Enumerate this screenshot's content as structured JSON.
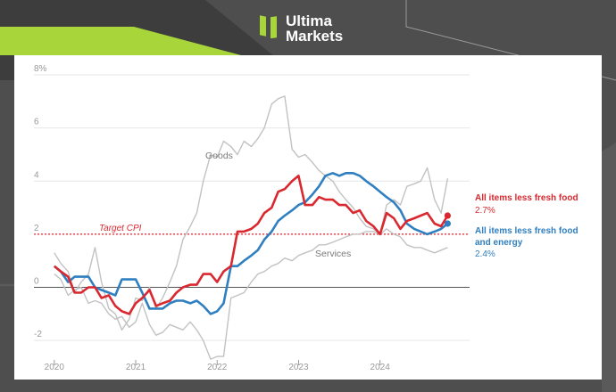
{
  "brand": {
    "line1": "Ultima",
    "line2": "Markets",
    "accent_color": "#a8d63a"
  },
  "chart_data": {
    "type": "line",
    "ylim": [
      -3,
      8
    ],
    "xlim": [
      2019.75,
      2025.1
    ],
    "y_ticks": [
      {
        "value": 8,
        "label": "8%"
      },
      {
        "value": 6,
        "label": "6"
      },
      {
        "value": 4,
        "label": "4"
      },
      {
        "value": 2,
        "label": "2"
      },
      {
        "value": 0,
        "label": "0"
      },
      {
        "value": -2,
        "label": "-2"
      }
    ],
    "x_ticks": [
      {
        "value": 2020,
        "label": "2020"
      },
      {
        "value": 2021,
        "label": "2021"
      },
      {
        "value": 2022,
        "label": "2022"
      },
      {
        "value": 2023,
        "label": "2023"
      },
      {
        "value": 2024,
        "label": "2024"
      }
    ],
    "target": {
      "value": 2,
      "label": "Target CPI"
    },
    "series": [
      {
        "name": "Goods",
        "color": "#c2c2c2",
        "width": 1.4,
        "x": [
          2020.0,
          2020.08,
          2020.17,
          2020.25,
          2020.33,
          2020.42,
          2020.5,
          2020.58,
          2020.67,
          2020.75,
          2020.83,
          2020.92,
          2021.0,
          2021.08,
          2021.17,
          2021.25,
          2021.33,
          2021.42,
          2021.5,
          2021.58,
          2021.67,
          2021.75,
          2021.83,
          2021.92,
          2022.0,
          2022.08,
          2022.17,
          2022.25,
          2022.33,
          2022.42,
          2022.5,
          2022.58,
          2022.67,
          2022.75,
          2022.83,
          2022.92,
          2023.0,
          2023.08,
          2023.17,
          2023.25,
          2023.33,
          2023.42,
          2023.5,
          2023.58,
          2023.67,
          2023.75,
          2023.83,
          2023.92,
          2024.0,
          2024.08,
          2024.17,
          2024.25,
          2024.33,
          2024.42,
          2024.5,
          2024.58,
          2024.67,
          2024.75,
          2024.83
        ],
        "y": [
          1.3,
          0.9,
          0.6,
          -0.2,
          0.2,
          0.5,
          1.5,
          0.2,
          -0.8,
          -1.0,
          -1.6,
          -1.2,
          -0.4,
          -0.5,
          0.0,
          -0.8,
          -0.4,
          0.2,
          0.8,
          1.8,
          2.3,
          2.8,
          4.0,
          5.0,
          4.9,
          5.5,
          5.3,
          5.0,
          5.5,
          5.3,
          5.6,
          6.0,
          6.9,
          7.1,
          7.2,
          5.2,
          4.9,
          5.0,
          4.7,
          4.4,
          4.2,
          4.0,
          3.6,
          3.3,
          3.0,
          2.6,
          2.3,
          2.2,
          2.0,
          3.1,
          3.3,
          3.1,
          3.8,
          3.9,
          4.0,
          4.5,
          3.3,
          2.8,
          4.1
        ]
      },
      {
        "name": "Services",
        "color": "#c2c2c2",
        "width": 1.4,
        "x": [
          2020.0,
          2020.08,
          2020.17,
          2020.25,
          2020.33,
          2020.42,
          2020.5,
          2020.58,
          2020.67,
          2020.75,
          2020.83,
          2020.92,
          2021.0,
          2021.08,
          2021.17,
          2021.25,
          2021.33,
          2021.42,
          2021.5,
          2021.58,
          2021.67,
          2021.75,
          2021.83,
          2021.92,
          2022.0,
          2022.08,
          2022.17,
          2022.25,
          2022.33,
          2022.42,
          2022.5,
          2022.58,
          2022.67,
          2022.75,
          2022.83,
          2022.92,
          2023.0,
          2023.08,
          2023.17,
          2023.25,
          2023.33,
          2023.42,
          2023.5,
          2023.58,
          2023.67,
          2023.75,
          2023.83,
          2023.92,
          2024.0,
          2024.08,
          2024.17,
          2024.25,
          2024.33,
          2024.42,
          2024.5,
          2024.58,
          2024.67,
          2024.75,
          2024.83
        ],
        "y": [
          0.5,
          0.3,
          -0.3,
          -0.1,
          0.0,
          -0.6,
          -0.5,
          -0.6,
          -1.0,
          -1.2,
          -1.1,
          -1.5,
          -1.3,
          -0.6,
          -1.4,
          -1.8,
          -1.7,
          -1.4,
          -1.5,
          -1.6,
          -1.3,
          -1.6,
          -2.0,
          -2.7,
          -2.6,
          -2.6,
          -0.4,
          -0.3,
          -0.2,
          0.2,
          0.5,
          0.6,
          0.8,
          0.9,
          1.1,
          1.0,
          1.2,
          1.3,
          1.4,
          1.6,
          1.6,
          1.7,
          1.8,
          1.9,
          2.0,
          2.0,
          2.1,
          2.1,
          2.0,
          2.2,
          2.0,
          1.9,
          1.6,
          1.5,
          1.5,
          1.4,
          1.3,
          1.4,
          1.5
        ]
      },
      {
        "name": "All items less fresh food and energy",
        "color": "#2f7fc1",
        "width": 2.6,
        "x": [
          2020.0,
          2020.08,
          2020.17,
          2020.25,
          2020.33,
          2020.42,
          2020.5,
          2020.58,
          2020.67,
          2020.75,
          2020.83,
          2020.92,
          2021.0,
          2021.08,
          2021.17,
          2021.25,
          2021.33,
          2021.42,
          2021.5,
          2021.58,
          2021.67,
          2021.75,
          2021.83,
          2021.92,
          2022.0,
          2022.08,
          2022.17,
          2022.25,
          2022.33,
          2022.42,
          2022.5,
          2022.58,
          2022.67,
          2022.75,
          2022.83,
          2022.92,
          2023.0,
          2023.08,
          2023.17,
          2023.25,
          2023.33,
          2023.42,
          2023.5,
          2023.58,
          2023.67,
          2023.75,
          2023.83,
          2023.92,
          2024.0,
          2024.08,
          2024.17,
          2024.25,
          2024.33,
          2024.42,
          2024.5,
          2024.58,
          2024.67,
          2024.75,
          2024.83
        ],
        "y": [
          0.8,
          0.6,
          0.2,
          0.4,
          0.4,
          0.4,
          0.0,
          -0.1,
          -0.2,
          -0.3,
          0.3,
          0.3,
          0.3,
          -0.2,
          -0.8,
          -0.8,
          -0.8,
          -0.6,
          -0.5,
          -0.5,
          -0.6,
          -0.5,
          -0.7,
          -1.0,
          -0.9,
          -0.6,
          0.8,
          0.8,
          1.0,
          1.2,
          1.4,
          1.8,
          2.1,
          2.5,
          2.7,
          2.9,
          3.1,
          3.2,
          3.5,
          3.8,
          4.2,
          4.3,
          4.2,
          4.3,
          4.3,
          4.2,
          4.0,
          3.8,
          3.6,
          3.4,
          3.2,
          2.9,
          2.4,
          2.2,
          2.1,
          2.0,
          2.1,
          2.2,
          2.4
        ]
      },
      {
        "name": "All items less fresh food",
        "color": "#d9282f",
        "width": 2.6,
        "x": [
          2020.0,
          2020.08,
          2020.17,
          2020.25,
          2020.33,
          2020.42,
          2020.5,
          2020.58,
          2020.67,
          2020.75,
          2020.83,
          2020.92,
          2021.0,
          2021.08,
          2021.17,
          2021.25,
          2021.33,
          2021.42,
          2021.5,
          2021.58,
          2021.67,
          2021.75,
          2021.83,
          2021.92,
          2022.0,
          2022.08,
          2022.17,
          2022.25,
          2022.33,
          2022.42,
          2022.5,
          2022.58,
          2022.67,
          2022.75,
          2022.83,
          2022.92,
          2023.0,
          2023.08,
          2023.17,
          2023.25,
          2023.33,
          2023.42,
          2023.5,
          2023.58,
          2023.67,
          2023.75,
          2023.83,
          2023.92,
          2024.0,
          2024.08,
          2024.17,
          2024.25,
          2024.33,
          2024.42,
          2024.5,
          2024.58,
          2024.67,
          2024.75,
          2024.83
        ],
        "y": [
          0.8,
          0.6,
          0.4,
          -0.2,
          -0.2,
          0.0,
          0.0,
          -0.4,
          -0.3,
          -0.7,
          -0.9,
          -1.0,
          -0.6,
          -0.4,
          -0.1,
          -0.7,
          -0.6,
          -0.5,
          -0.2,
          0.0,
          0.1,
          0.1,
          0.5,
          0.5,
          0.2,
          0.6,
          0.8,
          2.1,
          2.1,
          2.2,
          2.4,
          2.8,
          3.0,
          3.6,
          3.7,
          4.0,
          4.2,
          3.1,
          3.1,
          3.4,
          3.3,
          3.3,
          3.1,
          3.1,
          2.8,
          2.9,
          2.5,
          2.3,
          2.0,
          2.8,
          2.6,
          2.2,
          2.5,
          2.6,
          2.7,
          2.8,
          2.4,
          2.3,
          2.7
        ]
      }
    ],
    "labels": {
      "goods": "Goods",
      "services": "Services",
      "red_title": "All items less fresh food",
      "red_value": "2.7%",
      "blue_title_1": "All items less fresh food",
      "blue_title_2": "and energy",
      "blue_value": "2.4%"
    }
  }
}
